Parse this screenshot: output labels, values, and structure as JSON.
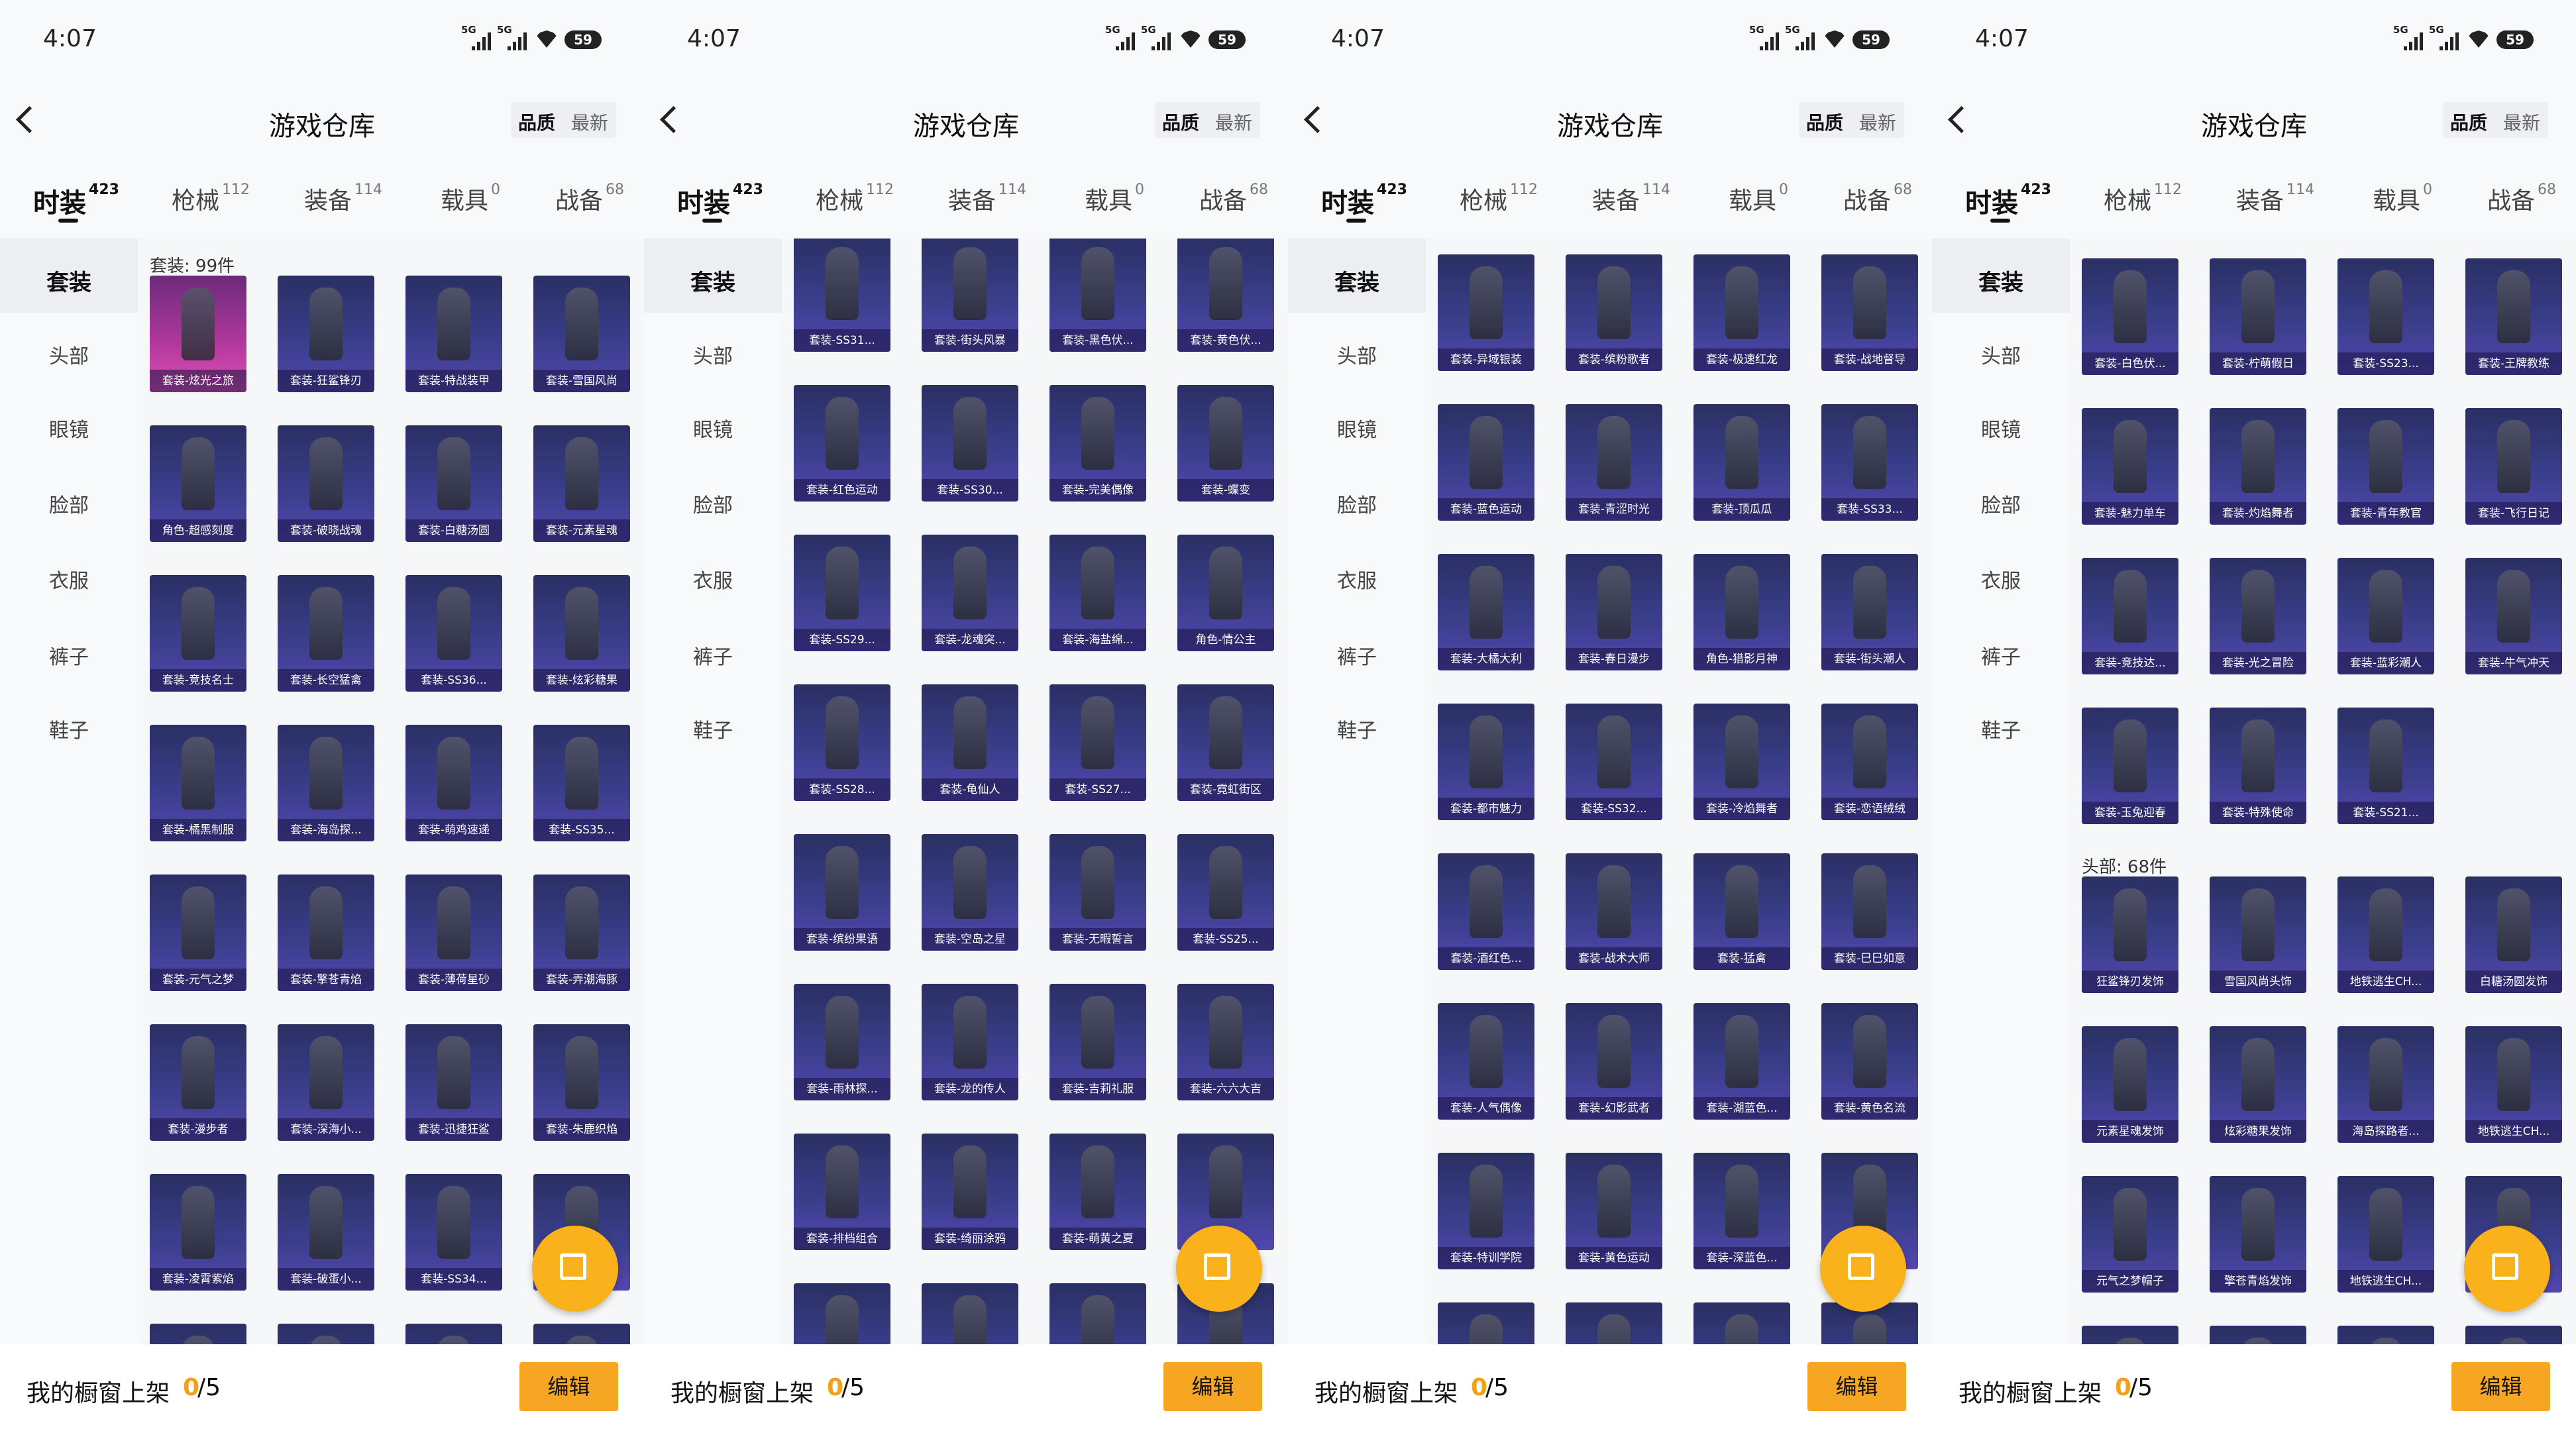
{
  "screens": [
    {
      "status": {
        "time": "4:07",
        "net1": "5G",
        "net2": "5G",
        "battery": "59"
      },
      "title": "游戏仓库",
      "sort": [
        "品质",
        "最新"
      ],
      "tabs": [
        {
          "name": "时装",
          "count": 423
        },
        {
          "name": "枪械",
          "count": 112
        },
        {
          "name": "装备",
          "count": 114
        },
        {
          "name": "载具",
          "count": 0
        },
        {
          "name": "战备",
          "count": 68
        }
      ],
      "side": [
        "套装",
        "头部",
        "眼镜",
        "脸部",
        "衣服",
        "裤子",
        "鞋子"
      ],
      "sections": [
        {
          "label": "套装: 99件",
          "items": [
            "套装-炫光之旅",
            "套装-狂鲨锋刃",
            "套装-特战装甲",
            "套装-雪国风尚",
            "角色-超感刻度",
            "套装-破晓战魂",
            "套装-白糖汤圆",
            "套装-元素星魂",
            "套装-竞技名士",
            "套装-长空猛禽",
            "套装-SS36...",
            "套装-炫彩糖果",
            "套装-橘黑制服",
            "套装-海岛探...",
            "套装-萌鸡速递",
            "套装-SS35...",
            "套装-元气之梦",
            "套装-擎苍青焰",
            "套装-薄荷星砂",
            "套装-弄潮海豚",
            "套装-漫步者",
            "套装-深海小...",
            "套装-迅捷狂鲨",
            "套装-朱鹿织焰",
            "套装-凌霄紫焰",
            "套装-破蛋小...",
            "套装-SS34...",
            null
          ]
        }
      ],
      "showcase": {
        "label": "我的橱窗上架",
        "count": 0,
        "total": "/5"
      },
      "edit": "编辑"
    },
    {
      "status": {
        "time": "4:07",
        "net1": "5G",
        "net2": "5G",
        "battery": "59"
      },
      "title": "游戏仓库",
      "sort": [
        "品质",
        "最新"
      ],
      "tabs": [
        {
          "name": "时装",
          "count": 423
        },
        {
          "name": "枪械",
          "count": 112
        },
        {
          "name": "装备",
          "count": 114
        },
        {
          "name": "载具",
          "count": 0
        },
        {
          "name": "战备",
          "count": 68
        }
      ],
      "side": [
        "套装",
        "头部",
        "眼镜",
        "脸部",
        "衣服",
        "裤子",
        "鞋子"
      ],
      "sections": [
        {
          "items": [
            "套装-SS31...",
            "套装-街头风暴",
            "套装-黑色伏...",
            "套装-黄色伏...",
            "套装-红色运动",
            "套装-SS30...",
            "套装-完美偶像",
            "套装-蝶变",
            "套装-SS29...",
            "套装-龙魂突...",
            "套装-海盐绵...",
            "角色-情公主",
            "套装-SS28...",
            "套装-龟仙人",
            "套装-SS27...",
            "套装-霓虹街区",
            "套装-缤纷果语",
            "套装-空岛之星",
            "套装-无暇誓言",
            "套装-SS25...",
            "套装-雨林探...",
            "套装-龙的传人",
            "套装-吉莉礼服",
            "套装-六六大吉",
            "套装-排档组合",
            "套装-绮丽涂鸦",
            "套装-萌黄之夏",
            null
          ]
        }
      ],
      "showcase": {
        "label": "我的橱窗上架",
        "count": 0,
        "total": "/5"
      },
      "edit": "编辑"
    },
    {
      "status": {
        "time": "4:07",
        "net1": "5G",
        "net2": "5G",
        "battery": "59"
      },
      "title": "游戏仓库",
      "sort": [
        "品质",
        "最新"
      ],
      "tabs": [
        {
          "name": "时装",
          "count": 423
        },
        {
          "name": "枪械",
          "count": 112
        },
        {
          "name": "装备",
          "count": 114
        },
        {
          "name": "载具",
          "count": 0
        },
        {
          "name": "战备",
          "count": 68
        }
      ],
      "side": [
        "套装",
        "头部",
        "眼镜",
        "脸部",
        "衣服",
        "裤子",
        "鞋子"
      ],
      "sections": [
        {
          "items": [
            "套装-异域银装",
            "套装-缤粉歌者",
            "套装-极速红龙",
            "套装-战地督导",
            "套装-蓝色运动",
            "套装-青涩时光",
            "套装-顶瓜瓜",
            "套装-SS33...",
            "套装-大橘大利",
            "套装-春日漫步",
            "角色-猎影月神",
            "套装-街头潮人",
            "套装-都市魅力",
            "套装-SS32...",
            "套装-冷焰舞者",
            "套装-恋语绒绒",
            "套装-酒红色...",
            "套装-战术大师",
            "套装-猛禽",
            "套装-巳巳如意",
            "套装-人气偶像",
            "套装-幻影武者",
            "套装-湖蓝色...",
            "套装-黄色名流",
            "套装-特训学院",
            "套装-黄色运动",
            "套装-深蓝色...",
            null
          ]
        }
      ],
      "showcase": {
        "label": "我的橱窗上架",
        "count": 0,
        "total": "/5"
      },
      "edit": "编辑"
    },
    {
      "status": {
        "time": "4:07",
        "net1": "5G",
        "net2": "5G",
        "battery": "59"
      },
      "title": "游戏仓库",
      "sort": [
        "品质",
        "最新"
      ],
      "tabs": [
        {
          "name": "时装",
          "count": 423
        },
        {
          "name": "枪械",
          "count": 112
        },
        {
          "name": "装备",
          "count": 114
        },
        {
          "name": "载具",
          "count": 0
        },
        {
          "name": "战备",
          "count": 68
        }
      ],
      "side": [
        "套装",
        "头部",
        "眼镜",
        "脸部",
        "衣服",
        "裤子",
        "鞋子"
      ],
      "sections": [
        {
          "items": [
            "套装-白色伏...",
            "套装-柠萌假日",
            "套装-SS23...",
            "套装-王牌教练",
            "套装-魅力单车",
            "套装-灼焰舞者",
            "套装-青年教官",
            "套装-飞行日记",
            "套装-竞技达...",
            "套装-光之冒险",
            "套装-蓝彩潮人",
            "套装-牛气冲天",
            "套装-玉兔迎春",
            "套装-特殊使命",
            "套装-SS21..."
          ]
        },
        {
          "label": "头部: 68件",
          "items": [
            "狂鲨锋刃发饰",
            "雪国风尚头饰",
            "地铁逃生CH...",
            "白糖汤圆发饰",
            "元素星魂发饰",
            "炫彩糖果发饰",
            "海岛探路者...",
            "地铁逃生CH...",
            "元气之梦帽子",
            "擎苍青焰发饰",
            "地铁逃生CH...",
            null
          ]
        }
      ],
      "showcase": {
        "label": "我的橱窗上架",
        "count": 0,
        "total": "/5"
      },
      "edit": "编辑"
    }
  ]
}
